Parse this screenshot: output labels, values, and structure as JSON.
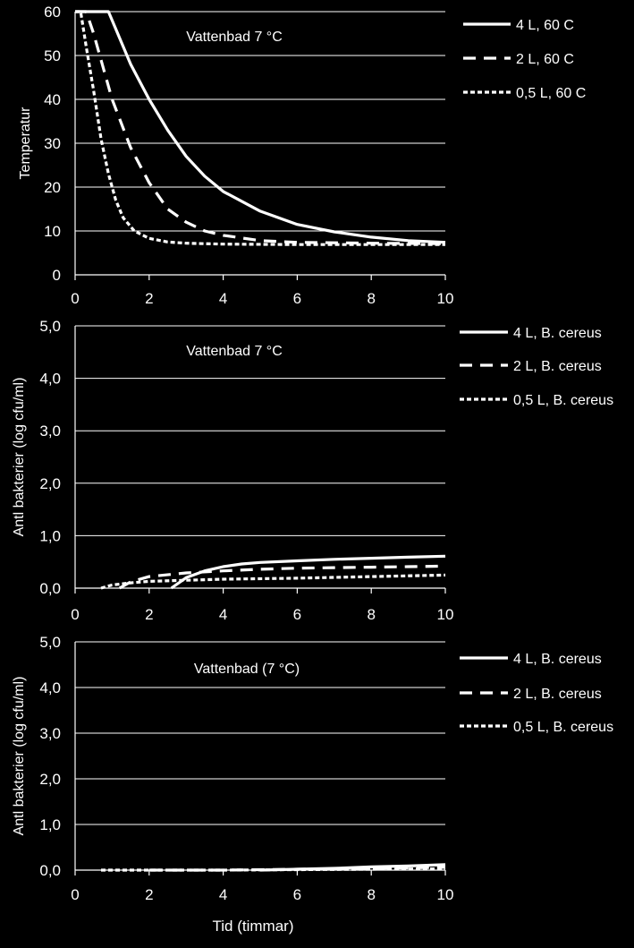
{
  "x_axis_label": "Tid (timmar)",
  "colors": {
    "background": "#000000",
    "foreground": "#ffffff"
  },
  "chart_data": [
    {
      "type": "line",
      "ylabel": "Temperatur",
      "annotation": "Vattenbad 7 °C",
      "xlim": [
        0,
        10
      ],
      "ylim": [
        0,
        60
      ],
      "x_ticks": [
        "0",
        "2",
        "4",
        "6",
        "8",
        "10"
      ],
      "y_ticks": [
        "0",
        "10",
        "20",
        "30",
        "40",
        "50",
        "60"
      ],
      "grid": "horizontal",
      "legend_position": "right",
      "series": [
        {
          "name": "4 L, 60 C",
          "style": "solid",
          "x": [
            0,
            0.9,
            1.2,
            1.5,
            2,
            2.5,
            3,
            3.5,
            4,
            5,
            6,
            7,
            8,
            9,
            10
          ],
          "y": [
            60,
            60,
            54,
            48,
            40,
            33,
            27,
            22.5,
            19,
            14.5,
            11.5,
            9.8,
            8.6,
            7.8,
            7.4
          ]
        },
        {
          "name": "2 L, 60 C",
          "style": "dashed",
          "x": [
            0,
            0.3,
            0.5,
            0.8,
            1,
            1.5,
            2,
            2.5,
            3,
            3.5,
            4,
            5,
            6,
            8,
            10
          ],
          "y": [
            60,
            60,
            55,
            46,
            40,
            29,
            21,
            15,
            12,
            10,
            9,
            7.8,
            7.4,
            7.2,
            7.1
          ]
        },
        {
          "name": "0,5 L, 60 C",
          "style": "dotted",
          "x": [
            0,
            0.15,
            0.3,
            0.5,
            0.7,
            0.9,
            1.1,
            1.3,
            1.6,
            2,
            2.5,
            3,
            4,
            6,
            8,
            10
          ],
          "y": [
            60,
            60,
            52,
            42,
            31,
            23,
            17,
            13,
            10,
            8.3,
            7.5,
            7.2,
            7,
            6.9,
            6.9,
            6.9
          ]
        }
      ]
    },
    {
      "type": "line",
      "ylabel": "Antl bakterier (log cfu/ml)",
      "annotation": "Vattenbad 7 °C",
      "xlim": [
        0,
        10
      ],
      "ylim": [
        0,
        5
      ],
      "x_ticks": [
        "0",
        "2",
        "4",
        "6",
        "8",
        "10"
      ],
      "y_ticks": [
        "0,0",
        "1,0",
        "2,0",
        "3,0",
        "4,0",
        "5,0"
      ],
      "grid": "horizontal",
      "legend_position": "right",
      "series": [
        {
          "name": "4 L, B. cereus",
          "style": "solid",
          "x": [
            2.6,
            3,
            3.5,
            4,
            4.5,
            5,
            6,
            7,
            8,
            9,
            10
          ],
          "y": [
            0,
            0.2,
            0.33,
            0.41,
            0.46,
            0.49,
            0.52,
            0.55,
            0.57,
            0.59,
            0.61
          ]
        },
        {
          "name": "2 L, B. cereus",
          "style": "dashed",
          "x": [
            1.2,
            1.5,
            2,
            3,
            4,
            5,
            6,
            7,
            8,
            9,
            10
          ],
          "y": [
            0,
            0.12,
            0.22,
            0.29,
            0.33,
            0.36,
            0.38,
            0.39,
            0.4,
            0.41,
            0.42
          ]
        },
        {
          "name": "0,5 L, B. cereus",
          "style": "dotted",
          "x": [
            0.7,
            1,
            1.5,
            2,
            3,
            4,
            6,
            8,
            10
          ],
          "y": [
            0,
            0.06,
            0.1,
            0.13,
            0.15,
            0.17,
            0.19,
            0.22,
            0.25
          ]
        }
      ]
    },
    {
      "type": "line",
      "ylabel": "Antl bakterier (log cfu/ml)",
      "annotation": "Vattenbad (7 °C)",
      "xlim": [
        0,
        10
      ],
      "ylim": [
        0,
        5
      ],
      "x_ticks": [
        "0",
        "2",
        "4",
        "6",
        "8",
        "10"
      ],
      "y_ticks": [
        "0,0",
        "1,0",
        "2,0",
        "3,0",
        "4,0",
        "5,0"
      ],
      "grid": "horizontal",
      "legend_position": "right",
      "series": [
        {
          "name": "4 L, B. cereus",
          "style": "solid",
          "x": [
            5,
            6,
            7,
            8,
            9,
            10
          ],
          "y": [
            0,
            0.02,
            0.04,
            0.07,
            0.09,
            0.12
          ]
        },
        {
          "name": "2 L, B. cereus",
          "style": "dashed",
          "x": [
            2,
            4,
            6,
            8,
            10
          ],
          "y": [
            0,
            0,
            0.02,
            0.04,
            0.06
          ]
        },
        {
          "name": "0,5 L, B. cereus",
          "style": "dotted",
          "x": [
            0.7,
            2,
            4,
            6,
            8,
            10
          ],
          "y": [
            0,
            0,
            0,
            0.01,
            0.02,
            0.03
          ]
        }
      ]
    }
  ]
}
